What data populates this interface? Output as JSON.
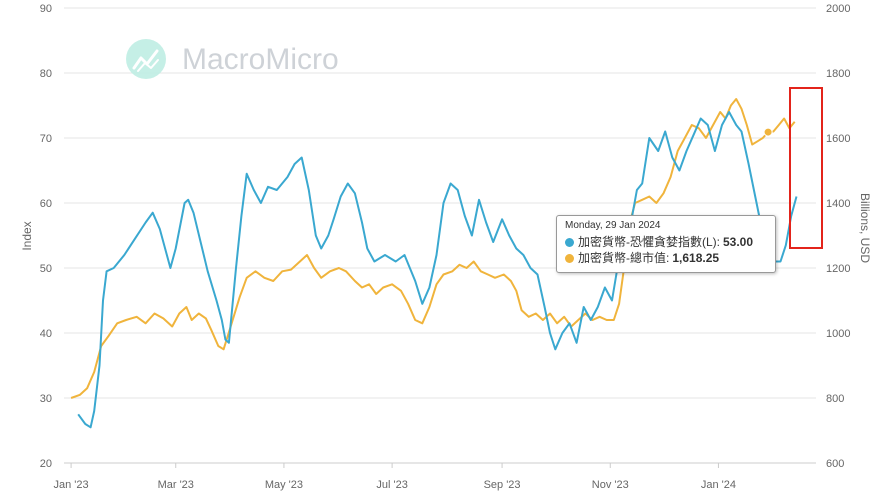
{
  "watermark": {
    "brand": "MacroMicro",
    "icon": "macromicro-logo-icon"
  },
  "colors": {
    "fear_greed": "#3aa8d0",
    "market_cap": "#f0b43c"
  },
  "tooltip": {
    "date": "Monday, 29 Jan 2024",
    "rows": [
      {
        "label": "加密貨幣-恐懼貪婪指數(L):",
        "value": "53.00"
      },
      {
        "label": "加密貨幣-總市值:",
        "value": "1,618.25"
      }
    ]
  },
  "chart_data": {
    "type": "line",
    "xlabel": "",
    "ylabel_left": "Index",
    "ylabel_right": "Billions, USD",
    "x_ticks": [
      "Jan '23",
      "Mar '23",
      "May '23",
      "Jul '23",
      "Sep '23",
      "Nov '23",
      "Jan '24"
    ],
    "x_tick_dates": [
      "2023-01-01",
      "2023-03-01",
      "2023-05-01",
      "2023-07-01",
      "2023-09-01",
      "2023-11-01",
      "2024-01-01"
    ],
    "x_range": [
      "2022-12-28",
      "2024-02-25"
    ],
    "y_left_ticks": [
      20,
      30,
      40,
      50,
      60,
      70,
      80,
      90
    ],
    "y_right_ticks": [
      600,
      800,
      1000,
      1200,
      1400,
      1600,
      1800,
      2000
    ],
    "ylim_left": [
      20,
      90
    ],
    "ylim_right": [
      600,
      2000
    ],
    "grid": true,
    "legend": "none",
    "series": [
      {
        "name": "加密貨幣-恐懼貪婪指數(L)",
        "axis": "left",
        "points": [
          [
            "2023-01-05",
            27.5
          ],
          [
            "2023-01-09",
            26
          ],
          [
            "2023-01-12",
            25.5
          ],
          [
            "2023-01-14",
            28
          ],
          [
            "2023-01-17",
            35
          ],
          [
            "2023-01-19",
            45
          ],
          [
            "2023-01-21",
            49.5
          ],
          [
            "2023-01-25",
            50
          ],
          [
            "2023-01-31",
            52
          ],
          [
            "2023-02-06",
            54.5
          ],
          [
            "2023-02-12",
            57
          ],
          [
            "2023-02-16",
            58.5
          ],
          [
            "2023-02-20",
            56
          ],
          [
            "2023-02-23",
            53
          ],
          [
            "2023-02-26",
            50
          ],
          [
            "2023-03-01",
            53
          ],
          [
            "2023-03-06",
            60
          ],
          [
            "2023-03-08",
            60.5
          ],
          [
            "2023-03-11",
            58.5
          ],
          [
            "2023-03-15",
            54
          ],
          [
            "2023-03-19",
            49.5
          ],
          [
            "2023-03-24",
            45
          ],
          [
            "2023-03-27",
            42
          ],
          [
            "2023-03-29",
            39
          ],
          [
            "2023-03-31",
            38.5
          ],
          [
            "2023-04-04",
            50
          ],
          [
            "2023-04-07",
            58
          ],
          [
            "2023-04-10",
            64.5
          ],
          [
            "2023-04-14",
            62
          ],
          [
            "2023-04-18",
            60
          ],
          [
            "2023-04-22",
            62.5
          ],
          [
            "2023-04-27",
            62
          ],
          [
            "2023-05-03",
            64
          ],
          [
            "2023-05-07",
            66
          ],
          [
            "2023-05-11",
            67
          ],
          [
            "2023-05-15",
            62
          ],
          [
            "2023-05-19",
            55
          ],
          [
            "2023-05-22",
            53
          ],
          [
            "2023-05-26",
            55
          ],
          [
            "2023-05-29",
            57.5
          ],
          [
            "2023-06-02",
            61
          ],
          [
            "2023-06-06",
            63
          ],
          [
            "2023-06-10",
            61.5
          ],
          [
            "2023-06-14",
            57
          ],
          [
            "2023-06-17",
            53
          ],
          [
            "2023-06-21",
            51
          ],
          [
            "2023-06-27",
            52
          ],
          [
            "2023-07-03",
            51
          ],
          [
            "2023-07-08",
            52
          ],
          [
            "2023-07-14",
            48
          ],
          [
            "2023-07-18",
            44.5
          ],
          [
            "2023-07-22",
            47
          ],
          [
            "2023-07-26",
            52
          ],
          [
            "2023-07-30",
            60
          ],
          [
            "2023-08-03",
            63
          ],
          [
            "2023-08-07",
            62
          ],
          [
            "2023-08-11",
            58
          ],
          [
            "2023-08-15",
            55
          ],
          [
            "2023-08-19",
            60.5
          ],
          [
            "2023-08-23",
            57
          ],
          [
            "2023-08-27",
            54
          ],
          [
            "2023-09-01",
            57.5
          ],
          [
            "2023-09-05",
            55
          ],
          [
            "2023-09-09",
            53
          ],
          [
            "2023-09-13",
            52
          ],
          [
            "2023-09-17",
            50
          ],
          [
            "2023-09-21",
            49
          ],
          [
            "2023-09-25",
            44
          ],
          [
            "2023-09-28",
            40
          ],
          [
            "2023-10-01",
            37.5
          ],
          [
            "2023-10-05",
            40
          ],
          [
            "2023-10-09",
            41.5
          ],
          [
            "2023-10-13",
            38.5
          ],
          [
            "2023-10-17",
            44
          ],
          [
            "2023-10-21",
            42
          ],
          [
            "2023-10-25",
            44
          ],
          [
            "2023-10-29",
            47
          ],
          [
            "2023-11-02",
            45
          ],
          [
            "2023-11-05",
            50
          ],
          [
            "2023-11-09",
            52.5
          ],
          [
            "2023-11-12",
            56
          ],
          [
            "2023-11-16",
            62
          ],
          [
            "2023-11-19",
            63
          ],
          [
            "2023-11-23",
            70
          ],
          [
            "2023-11-28",
            68
          ],
          [
            "2023-12-02",
            71
          ],
          [
            "2023-12-06",
            67
          ],
          [
            "2023-12-10",
            65
          ],
          [
            "2023-12-14",
            68
          ],
          [
            "2023-12-18",
            70.5
          ],
          [
            "2023-12-22",
            73
          ],
          [
            "2023-12-26",
            72
          ],
          [
            "2023-12-30",
            68
          ],
          [
            "2024-01-03",
            72
          ],
          [
            "2024-01-07",
            74
          ],
          [
            "2024-01-11",
            72
          ],
          [
            "2024-01-14",
            71
          ],
          [
            "2024-01-18",
            66
          ],
          [
            "2024-01-21",
            62
          ],
          [
            "2024-01-24",
            58
          ],
          [
            "2024-01-27",
            55
          ],
          [
            "2024-01-29",
            53
          ],
          [
            "2024-02-02",
            51
          ],
          [
            "2024-02-05",
            51
          ],
          [
            "2024-02-08",
            53.5
          ],
          [
            "2024-02-11",
            58
          ],
          [
            "2024-02-14",
            61
          ]
        ]
      },
      {
        "name": "加密貨幣-總市值",
        "axis": "right",
        "points": [
          [
            "2023-01-01",
            800
          ],
          [
            "2023-01-06",
            810
          ],
          [
            "2023-01-10",
            830
          ],
          [
            "2023-01-14",
            880
          ],
          [
            "2023-01-18",
            960
          ],
          [
            "2023-01-22",
            990
          ],
          [
            "2023-01-27",
            1030
          ],
          [
            "2023-02-01",
            1040
          ],
          [
            "2023-02-07",
            1050
          ],
          [
            "2023-02-12",
            1030
          ],
          [
            "2023-02-17",
            1060
          ],
          [
            "2023-02-22",
            1045
          ],
          [
            "2023-02-27",
            1020
          ],
          [
            "2023-03-03",
            1060
          ],
          [
            "2023-03-07",
            1080
          ],
          [
            "2023-03-10",
            1040
          ],
          [
            "2023-03-14",
            1060
          ],
          [
            "2023-03-18",
            1045
          ],
          [
            "2023-03-21",
            1010
          ],
          [
            "2023-03-25",
            960
          ],
          [
            "2023-03-28",
            950
          ],
          [
            "2023-04-01",
            1020
          ],
          [
            "2023-04-06",
            1110
          ],
          [
            "2023-04-10",
            1170
          ],
          [
            "2023-04-15",
            1190
          ],
          [
            "2023-04-20",
            1170
          ],
          [
            "2023-04-25",
            1160
          ],
          [
            "2023-04-30",
            1190
          ],
          [
            "2023-05-05",
            1195
          ],
          [
            "2023-05-10",
            1220
          ],
          [
            "2023-05-14",
            1240
          ],
          [
            "2023-05-18",
            1200
          ],
          [
            "2023-05-22",
            1170
          ],
          [
            "2023-05-27",
            1190
          ],
          [
            "2023-06-01",
            1200
          ],
          [
            "2023-06-05",
            1190
          ],
          [
            "2023-06-10",
            1160
          ],
          [
            "2023-06-14",
            1140
          ],
          [
            "2023-06-18",
            1150
          ],
          [
            "2023-06-22",
            1120
          ],
          [
            "2023-06-26",
            1140
          ],
          [
            "2023-07-01",
            1150
          ],
          [
            "2023-07-06",
            1130
          ],
          [
            "2023-07-10",
            1090
          ],
          [
            "2023-07-14",
            1040
          ],
          [
            "2023-07-18",
            1030
          ],
          [
            "2023-07-22",
            1080
          ],
          [
            "2023-07-26",
            1150
          ],
          [
            "2023-07-30",
            1180
          ],
          [
            "2023-08-04",
            1190
          ],
          [
            "2023-08-08",
            1210
          ],
          [
            "2023-08-12",
            1200
          ],
          [
            "2023-08-16",
            1220
          ],
          [
            "2023-08-20",
            1190
          ],
          [
            "2023-08-24",
            1180
          ],
          [
            "2023-08-28",
            1170
          ],
          [
            "2023-09-02",
            1180
          ],
          [
            "2023-09-06",
            1160
          ],
          [
            "2023-09-09",
            1130
          ],
          [
            "2023-09-12",
            1070
          ],
          [
            "2023-09-16",
            1050
          ],
          [
            "2023-09-20",
            1060
          ],
          [
            "2023-09-24",
            1040
          ],
          [
            "2023-09-28",
            1060
          ],
          [
            "2023-10-02",
            1030
          ],
          [
            "2023-10-06",
            1050
          ],
          [
            "2023-10-10",
            1020
          ],
          [
            "2023-10-14",
            1040
          ],
          [
            "2023-10-18",
            1060
          ],
          [
            "2023-10-22",
            1040
          ],
          [
            "2023-10-26",
            1050
          ],
          [
            "2023-10-30",
            1040
          ],
          [
            "2023-11-03",
            1040
          ],
          [
            "2023-11-06",
            1090
          ],
          [
            "2023-11-09",
            1210
          ],
          [
            "2023-11-12",
            1340
          ],
          [
            "2023-11-15",
            1400
          ],
          [
            "2023-11-19",
            1410
          ],
          [
            "2023-11-23",
            1420
          ],
          [
            "2023-11-27",
            1400
          ],
          [
            "2023-12-01",
            1430
          ],
          [
            "2023-12-05",
            1480
          ],
          [
            "2023-12-09",
            1560
          ],
          [
            "2023-12-13",
            1600
          ],
          [
            "2023-12-17",
            1640
          ],
          [
            "2023-12-21",
            1630
          ],
          [
            "2023-12-25",
            1600
          ],
          [
            "2023-12-29",
            1640
          ],
          [
            "2024-01-02",
            1680
          ],
          [
            "2024-01-05",
            1660
          ],
          [
            "2024-01-08",
            1700
          ],
          [
            "2024-01-11",
            1720
          ],
          [
            "2024-01-14",
            1690
          ],
          [
            "2024-01-17",
            1640
          ],
          [
            "2024-01-20",
            1580
          ],
          [
            "2024-01-23",
            1590
          ],
          [
            "2024-01-26",
            1600
          ],
          [
            "2024-01-29",
            1618.25
          ],
          [
            "2024-02-01",
            1620
          ],
          [
            "2024-02-04",
            1640
          ],
          [
            "2024-02-07",
            1660
          ],
          [
            "2024-02-10",
            1630
          ],
          [
            "2024-02-13",
            1650
          ]
        ]
      }
    ]
  }
}
